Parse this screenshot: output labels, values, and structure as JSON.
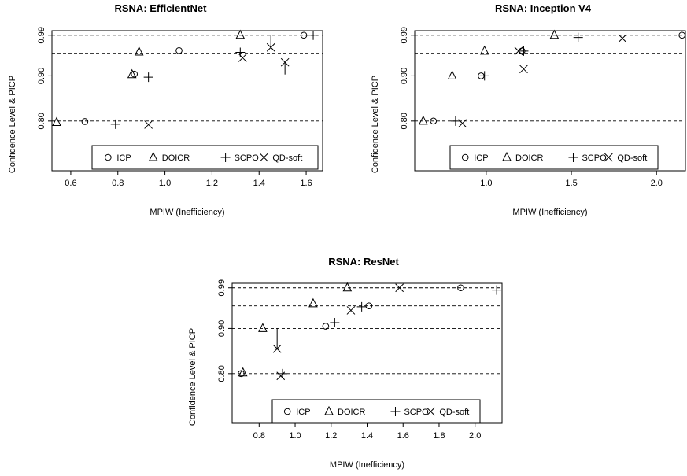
{
  "chart_data": [
    {
      "type": "scatter",
      "title": "RSNA: EfficientNet",
      "xlabel": "MPIW (Inefficiency)",
      "ylabel": "Confidence Level & PICP",
      "xlim": [
        0.52,
        1.67
      ],
      "ylim": [
        0.69,
        1.0
      ],
      "x_ticks": [
        0.6,
        0.8,
        1.0,
        1.2,
        1.4,
        1.6
      ],
      "x_tick_labels": [
        "0.6",
        "0.8",
        "1.0",
        "1.2",
        "1.4",
        "1.6"
      ],
      "y_ticks": [
        0.8,
        0.9,
        0.99
      ],
      "y_tick_labels": [
        "0.80",
        "0.90",
        "0.99"
      ],
      "reference_lines": [
        0.8,
        0.9,
        0.95,
        0.99
      ],
      "legend_position": "bottom-right",
      "series": [
        {
          "name": "ICP",
          "marker": "circle",
          "points": [
            [
              0.66,
              0.799
            ],
            [
              0.87,
              0.904
            ],
            [
              1.06,
              0.956
            ],
            [
              1.59,
              0.99
            ]
          ]
        },
        {
          "name": "DOICR",
          "marker": "triangle",
          "points": [
            [
              0.54,
              0.797
            ],
            [
              0.86,
              0.903
            ],
            [
              0.89,
              0.953
            ],
            [
              1.32,
              0.99
            ]
          ]
        },
        {
          "name": "SCPO",
          "marker": "plus",
          "points": [
            [
              0.79,
              0.793
            ],
            [
              0.93,
              0.897
            ],
            [
              1.32,
              0.952
            ],
            [
              1.63,
              0.99
            ]
          ]
        },
        {
          "name": "QD-soft",
          "marker": "cross",
          "points": [
            [
              0.93,
              0.792
            ],
            [
              1.33,
              0.94
            ],
            [
              1.45,
              0.963
            ],
            [
              1.51,
              0.93
            ]
          ]
        }
      ],
      "error_bars": [
        {
          "x": 1.45,
          "y_from": 0.963,
          "y_to": 0.99
        },
        {
          "x": 1.51,
          "y_from": 0.93,
          "y_to": 0.903
        }
      ]
    },
    {
      "type": "scatter",
      "title": "RSNA: Inception V4",
      "xlabel": "MPIW (Inefficiency)",
      "ylabel": "Confidence Level & PICP",
      "xlim": [
        0.58,
        2.17
      ],
      "ylim": [
        0.69,
        1.0
      ],
      "x_ticks": [
        1.0,
        1.5,
        2.0
      ],
      "x_tick_labels": [
        "1.0",
        "1.5",
        "2.0"
      ],
      "y_ticks": [
        0.8,
        0.9,
        0.99
      ],
      "y_tick_labels": [
        "0.80",
        "0.90",
        "0.99"
      ],
      "reference_lines": [
        0.8,
        0.9,
        0.95,
        0.99
      ],
      "legend_position": "bottom-right",
      "series": [
        {
          "name": "ICP",
          "marker": "circle",
          "points": [
            [
              0.69,
              0.8
            ],
            [
              0.97,
              0.9
            ],
            [
              1.21,
              0.955
            ],
            [
              2.15,
              0.99
            ]
          ]
        },
        {
          "name": "DOICR",
          "marker": "triangle",
          "points": [
            [
              0.63,
              0.8
            ],
            [
              0.8,
              0.9
            ],
            [
              0.99,
              0.955
            ],
            [
              1.4,
              0.99
            ]
          ]
        },
        {
          "name": "SCPO",
          "marker": "plus",
          "points": [
            [
              0.82,
              0.8
            ],
            [
              0.99,
              0.9
            ],
            [
              1.22,
              0.955
            ],
            [
              1.54,
              0.985
            ]
          ]
        },
        {
          "name": "QD-soft",
          "marker": "cross",
          "points": [
            [
              0.86,
              0.795
            ],
            [
              1.22,
              0.915
            ],
            [
              1.19,
              0.955
            ],
            [
              1.8,
              0.983
            ]
          ]
        }
      ],
      "error_bars": []
    },
    {
      "type": "scatter",
      "title": "RSNA: ResNet",
      "xlabel": "MPIW (Inefficiency)",
      "ylabel": "Confidence Level & PICP",
      "xlim": [
        0.65,
        2.15
      ],
      "ylim": [
        0.69,
        1.0
      ],
      "x_ticks": [
        0.8,
        1.0,
        1.2,
        1.4,
        1.6,
        1.8,
        2.0
      ],
      "x_tick_labels": [
        "0.8",
        "1.0",
        "1.2",
        "1.4",
        "1.6",
        "1.8",
        "2.0"
      ],
      "y_ticks": [
        0.8,
        0.9,
        0.99
      ],
      "y_tick_labels": [
        "0.80",
        "0.90",
        "0.99"
      ],
      "reference_lines": [
        0.8,
        0.9,
        0.95,
        0.99
      ],
      "legend_position": "bottom-right",
      "series": [
        {
          "name": "ICP",
          "marker": "circle",
          "points": [
            [
              0.7,
              0.8
            ],
            [
              1.17,
              0.905
            ],
            [
              1.41,
              0.95
            ],
            [
              1.92,
              0.99
            ]
          ]
        },
        {
          "name": "DOICR",
          "marker": "triangle",
          "points": [
            [
              0.71,
              0.802
            ],
            [
              0.82,
              0.9
            ],
            [
              1.1,
              0.955
            ],
            [
              1.29,
              0.99
            ]
          ]
        },
        {
          "name": "SCPO",
          "marker": "plus",
          "points": [
            [
              0.93,
              0.8
            ],
            [
              1.22,
              0.913
            ],
            [
              1.37,
              0.948
            ],
            [
              2.12,
              0.985
            ]
          ]
        },
        {
          "name": "QD-soft",
          "marker": "cross",
          "points": [
            [
              0.92,
              0.795
            ],
            [
              0.9,
              0.855
            ],
            [
              1.31,
              0.94
            ],
            [
              1.58,
              0.99
            ]
          ]
        }
      ],
      "error_bars": [
        {
          "x": 0.9,
          "y_from": 0.855,
          "y_to": 0.9
        }
      ]
    }
  ]
}
